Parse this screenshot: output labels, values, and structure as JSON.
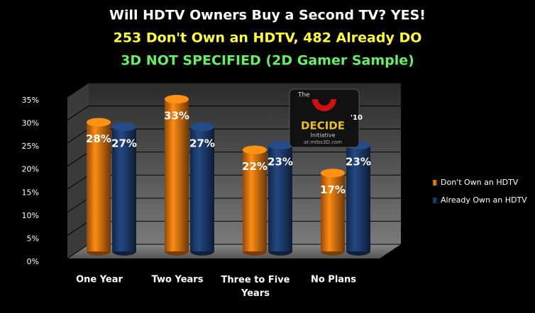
{
  "chart_data": {
    "type": "bar3d",
    "title": "Will HDTV Owners Buy a Second TV?  YES!",
    "subtitle": "253 Don't Own an HDTV, 482 Already DO",
    "note": "3D NOT SPECIFIED (2D Gamer Sample)",
    "categories": [
      "One Year",
      "Two Years",
      "Three to Five Years",
      "No Plans"
    ],
    "series": [
      {
        "name": "Don't Own an HDTV",
        "color": "#f07a10",
        "values": [
          28,
          33,
          22,
          17
        ],
        "value_labels": [
          "28%",
          "33%",
          "22%",
          "17%"
        ]
      },
      {
        "name": "Already Own an HDTV",
        "color": "#1f3f73",
        "values": [
          27,
          27,
          23,
          23
        ],
        "value_labels": [
          "27%",
          "27%",
          "23%",
          "23%"
        ]
      }
    ],
    "ylim": [
      0,
      35
    ],
    "yticks": [
      {
        "value": 0,
        "label": "0%"
      },
      {
        "value": 5,
        "label": "5%"
      },
      {
        "value": 10,
        "label": "10%"
      },
      {
        "value": 15,
        "label": "15%"
      },
      {
        "value": 20,
        "label": "20%"
      },
      {
        "value": 25,
        "label": "25%"
      },
      {
        "value": 30,
        "label": "30%"
      },
      {
        "value": 35,
        "label": "35%"
      }
    ],
    "grid": true,
    "legend": "right"
  },
  "logo": {
    "top": "The",
    "name": "DECIDE",
    "year": "'10",
    "sub": "Initiative",
    "site": "at:mtbs3D.com"
  }
}
